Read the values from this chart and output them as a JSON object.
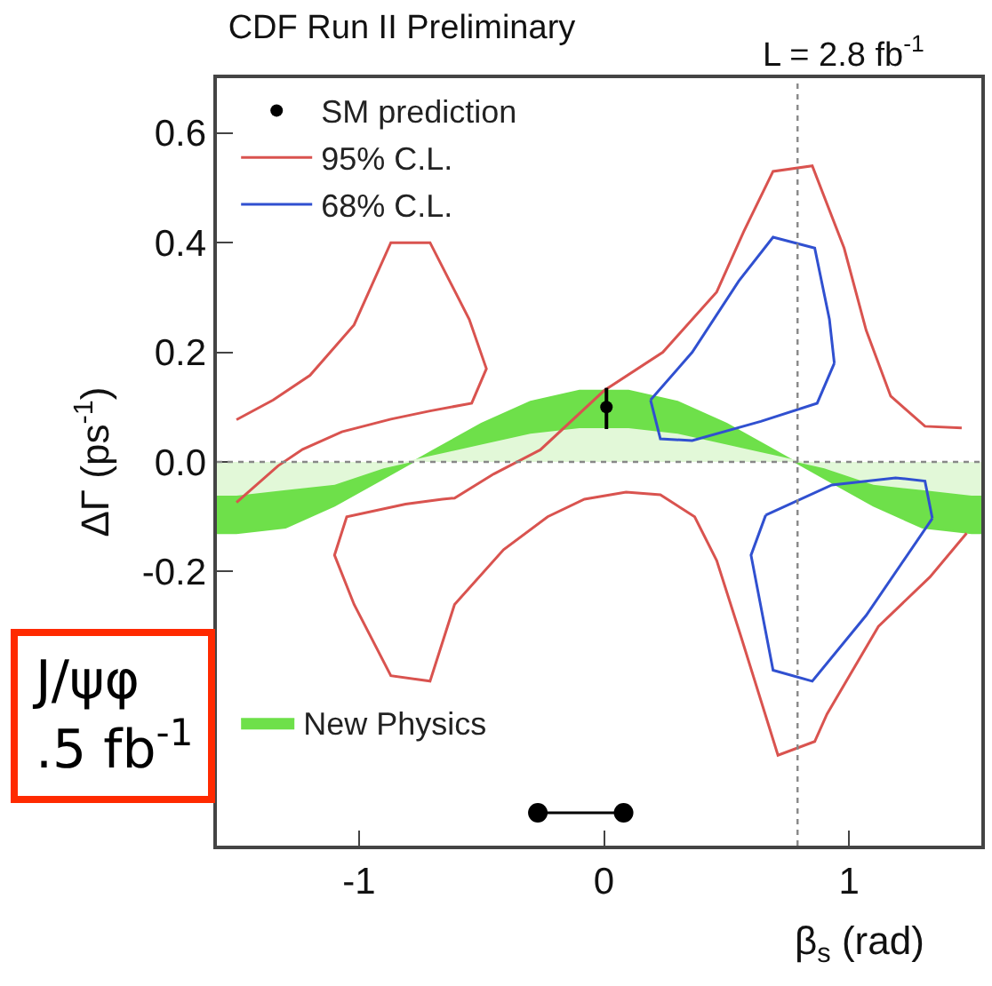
{
  "chart_data": {
    "type": "line",
    "title": "CDF Run II Preliminary",
    "xlabel": "β$_{s}$ (rad)",
    "ylabel": "ΔΓ (ps$^{-1}$)",
    "annotations": [
      "L = 2.8 fb$^{-1}$",
      "J/ψφ\n.5 fb$^{-1}$"
    ],
    "xlim": [
      -1.58,
      1.54
    ],
    "xticks": [
      -1,
      0,
      1
    ],
    "ylim": [
      -0.7,
      0.7
    ],
    "yticks": [
      -0.2,
      {
        "value": 0,
        "label": "0.0"
      },
      0.2,
      0.4,
      0.6
    ],
    "legend": "top left",
    "ref_lines": [
      {
        "axis": "y",
        "value": 0,
        "label": null,
        "color": "#888888",
        "line_style": "dotted"
      },
      {
        "axis": "x",
        "value": 0.79,
        "label": null,
        "color": "#888888",
        "line_style": "dotted"
      }
    ],
    "series": [
      {
        "name": "New Physics",
        "type": "area",
        "color": "#6ee04a",
        "x": [
          -1.58,
          -1.5,
          -1.3,
          -1.1,
          -0.9,
          -0.7,
          -0.5,
          -0.3,
          -0.1,
          0.1,
          0.3,
          0.5,
          0.7,
          0.9,
          1.1,
          1.3,
          1.5,
          1.54
        ],
        "values": [
          -0.13,
          -0.13,
          -0.12,
          -0.08,
          -0.03,
          0.02,
          0.07,
          0.11,
          0.13,
          0.13,
          0.11,
          0.07,
          0.02,
          -0.03,
          -0.08,
          -0.12,
          -0.13,
          -0.13
        ]
      },
      {
        "type": "area",
        "color": "#e2f8d8",
        "x": [
          -1.58,
          -1.5,
          -1.3,
          -1.1,
          -0.9,
          -0.7,
          -0.5,
          -0.3,
          -0.1,
          0.1,
          0.3,
          0.5,
          0.7,
          0.9,
          1.1,
          1.3,
          1.5,
          1.54
        ],
        "values": [
          -0.06,
          -0.06,
          -0.05,
          -0.04,
          -0.01,
          0.01,
          0.03,
          0.05,
          0.06,
          0.06,
          0.05,
          0.03,
          0.01,
          -0.01,
          -0.04,
          -0.05,
          -0.06,
          -0.06
        ]
      },
      {
        "name": "95% C.L.",
        "color": "#d9534f",
        "x": [
          -1.5,
          -1.35,
          -1.2,
          -1.02,
          -0.87,
          -0.71,
          -0.55,
          -0.48,
          -0.54,
          -0.71,
          -0.87,
          -1.07,
          -1.23,
          -1.33,
          -1.5
        ],
        "values": [
          0.077,
          0.113,
          0.158,
          0.25,
          0.4,
          0.4,
          0.26,
          0.17,
          0.107,
          0.093,
          0.078,
          0.055,
          0.023,
          -0.007,
          -0.074
        ]
      },
      {
        "color": "#d9534f",
        "x": [
          1.48,
          1.33,
          1.12,
          0.91,
          0.86,
          0.71,
          0.56,
          0.46,
          0.37,
          0.23,
          0.09,
          -0.08,
          -0.23,
          -0.41,
          -0.61,
          -0.71,
          -0.87,
          -1.02,
          -1.1,
          -1.05,
          -0.81,
          -0.66,
          -0.61,
          -0.45,
          -0.26,
          0.0,
          0.24,
          0.46,
          0.57,
          0.69,
          0.85,
          0.98,
          1.07,
          1.17,
          1.31,
          1.46
        ],
        "values": [
          -0.13,
          -0.21,
          -0.3,
          -0.46,
          -0.51,
          -0.535,
          -0.32,
          -0.18,
          -0.1,
          -0.06,
          -0.055,
          -0.068,
          -0.1,
          -0.16,
          -0.26,
          -0.4,
          -0.39,
          -0.26,
          -0.17,
          -0.1,
          -0.077,
          -0.068,
          -0.066,
          -0.022,
          0.022,
          0.13,
          0.2,
          0.31,
          0.42,
          0.53,
          0.54,
          0.39,
          0.24,
          0.12,
          0.065,
          0.062
        ]
      },
      {
        "name": "68% C.L.",
        "color": "#3050d0",
        "x": [
          0.19,
          0.23,
          0.36,
          0.64,
          0.87,
          0.94
        ],
        "values": [
          0.113,
          0.042,
          0.039,
          0.074,
          0.107,
          0.18
        ]
      },
      {
        "color": "#3050d0",
        "x": [
          0.94,
          0.92,
          0.86,
          0.69,
          0.55,
          0.36,
          0.19
        ],
        "values": [
          0.18,
          0.26,
          0.39,
          0.41,
          0.33,
          0.2,
          0.113
        ]
      },
      {
        "color": "#3050d0",
        "x": [
          0.66,
          0.6,
          0.69,
          0.85,
          1.07,
          1.34
        ],
        "values": [
          -0.097,
          -0.17,
          -0.38,
          -0.4,
          -0.28,
          -0.103
        ]
      },
      {
        "color": "#3050d0",
        "x": [
          1.34,
          1.31,
          1.19,
          0.93,
          0.66
        ],
        "values": [
          -0.103,
          -0.035,
          -0.029,
          -0.042,
          -0.097
        ]
      },
      {
        "name": "SM prediction",
        "type": "scatter",
        "color": "#000000",
        "marker": "circle",
        "x": [
          0.01
        ],
        "values": [
          0.1
        ],
        "errors": [
          [
            0.06,
            0.135
          ]
        ]
      },
      {
        "color": "#000000",
        "marker": "circle",
        "x": [
          -0.27,
          0.08
        ],
        "values": [
          -0.64,
          -0.64
        ]
      }
    ]
  }
}
